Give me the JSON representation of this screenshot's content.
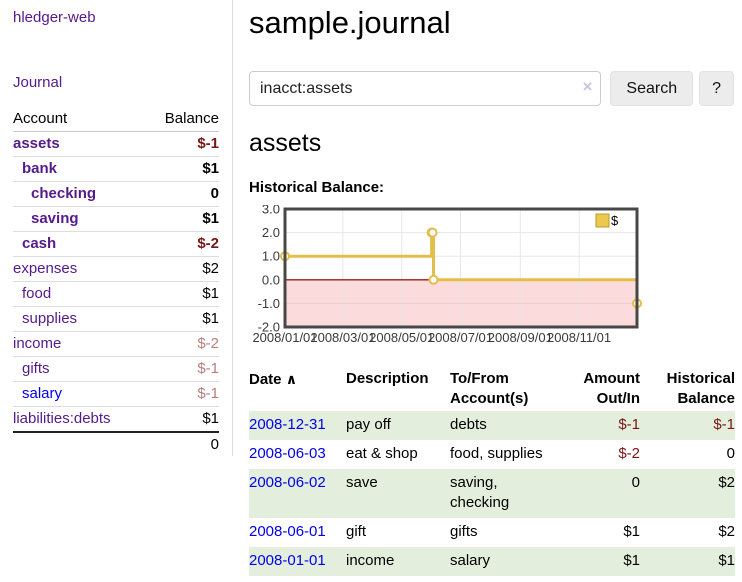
{
  "app": {
    "brand": "hledger-web"
  },
  "sidebar": {
    "journal_link": "Journal",
    "columns": {
      "account": "Account",
      "balance": "Balance"
    },
    "accounts": [
      {
        "name": "assets",
        "depth": 1,
        "bold": true,
        "link": "purple",
        "balance": "$-1",
        "tone": "neg-strong"
      },
      {
        "name": "bank",
        "depth": 2,
        "bold": true,
        "link": "purple",
        "balance": "$1",
        "tone": ""
      },
      {
        "name": "checking",
        "depth": 3,
        "bold": true,
        "link": "purple",
        "balance": "0",
        "tone": ""
      },
      {
        "name": "saving",
        "depth": 3,
        "bold": true,
        "link": "purple",
        "balance": "$1",
        "tone": ""
      },
      {
        "name": "cash",
        "depth": 2,
        "bold": true,
        "link": "purple",
        "balance": "$-2",
        "tone": "neg-strong"
      },
      {
        "name": "expenses",
        "depth": 1,
        "bold": false,
        "link": "purple",
        "balance": "$2",
        "tone": ""
      },
      {
        "name": "food",
        "depth": 2,
        "bold": false,
        "link": "purple",
        "balance": "$1",
        "tone": ""
      },
      {
        "name": "supplies",
        "depth": 2,
        "bold": false,
        "link": "purple",
        "balance": "$1",
        "tone": ""
      },
      {
        "name": "income",
        "depth": 1,
        "bold": false,
        "link": "purple",
        "balance": "$-2",
        "tone": "neg-light"
      },
      {
        "name": "gifts",
        "depth": 2,
        "bold": false,
        "link": "purple",
        "balance": "$-1",
        "tone": "neg-light"
      },
      {
        "name": "salary",
        "depth": 2,
        "bold": false,
        "link": "blue",
        "balance": "$-1",
        "tone": "neg-light"
      },
      {
        "name": "liabilities:debts",
        "depth": 1,
        "bold": false,
        "link": "purple",
        "balance": "$1",
        "tone": ""
      }
    ],
    "total": "0"
  },
  "header": {
    "title": "sample.journal"
  },
  "search": {
    "value": "inacct:assets",
    "clear_icon": "×",
    "button_label": "Search",
    "help_label": "?"
  },
  "account_page": {
    "title": "assets",
    "chart_label": "Historical Balance:"
  },
  "chart_data": {
    "type": "line",
    "step": true,
    "x_type": "date",
    "xrange": [
      "2008-01-01",
      "2008-12-31"
    ],
    "ylim": [
      -2,
      3
    ],
    "yticks": [
      {
        "v": 3,
        "label": "3.0"
      },
      {
        "v": 2,
        "label": "2.0"
      },
      {
        "v": 1,
        "label": "1.0"
      },
      {
        "v": 0,
        "label": "0.0"
      },
      {
        "v": -1,
        "label": "-1.0"
      },
      {
        "v": -2,
        "label": "-2.0"
      }
    ],
    "xticks": [
      {
        "date": "2008-01-01",
        "label": "2008/01/01"
      },
      {
        "date": "2008-03-01",
        "label": "2008/03/01"
      },
      {
        "date": "2008-05-01",
        "label": "2008/05/01"
      },
      {
        "date": "2008-07-01",
        "label": "2008/07/01"
      },
      {
        "date": "2008-09-01",
        "label": "2008/09/01"
      },
      {
        "date": "2008-11-01",
        "label": "2008/11/01"
      }
    ],
    "series": [
      {
        "name": "$",
        "color": "#e5bd4a",
        "points": [
          {
            "date": "2008-01-01",
            "value": 1
          },
          {
            "date": "2008-06-01",
            "value": 2
          },
          {
            "date": "2008-06-02",
            "value": 2
          },
          {
            "date": "2008-06-03",
            "value": 0
          },
          {
            "date": "2008-12-31",
            "value": -1
          }
        ]
      }
    ],
    "legend_position": "top-right",
    "grid": true,
    "colors": {
      "grid": "#e7e7e7",
      "border": "#474747",
      "zero_line": "#9d1c1c",
      "negative_region": "#fbdbdb",
      "marker_fill": "#ffffff",
      "legend_fill": "#ecc84f",
      "legend_border": "#b89b2e",
      "tick_text": "#3a3a3a"
    }
  },
  "register": {
    "sort_icon": "∧",
    "headers": [
      {
        "line1": "Date",
        "sort": true,
        "align": "left"
      },
      {
        "line1": "Description",
        "align": "left"
      },
      {
        "line1": "To/From",
        "line2": "Account(s)",
        "align": "left"
      },
      {
        "line1": "Amount",
        "line2": "Out/In",
        "align": "right"
      },
      {
        "line1": "Historical",
        "line2": "Balance",
        "align": "right"
      }
    ],
    "rows": [
      {
        "date": "2008-12-31",
        "description": "pay off",
        "accounts": "debts",
        "amount": "$-1",
        "amount_neg": true,
        "balance": "$-1",
        "balance_neg": true,
        "shaded": true
      },
      {
        "date": "2008-06-03",
        "description": "eat & shop",
        "accounts": "food, supplies",
        "amount": "$-2",
        "amount_neg": true,
        "balance": "0",
        "balance_neg": false,
        "shaded": false
      },
      {
        "date": "2008-06-02",
        "description": "save",
        "accounts": "saving, checking",
        "amount": "0",
        "amount_neg": false,
        "balance": "$2",
        "balance_neg": false,
        "shaded": true
      },
      {
        "date": "2008-06-01",
        "description": "gift",
        "accounts": "gifts",
        "amount": "$1",
        "amount_neg": false,
        "balance": "$2",
        "balance_neg": false,
        "shaded": false
      },
      {
        "date": "2008-01-01",
        "description": "income",
        "accounts": "salary",
        "amount": "$1",
        "amount_neg": false,
        "balance": "$1",
        "balance_neg": false,
        "shaded": true
      }
    ]
  }
}
